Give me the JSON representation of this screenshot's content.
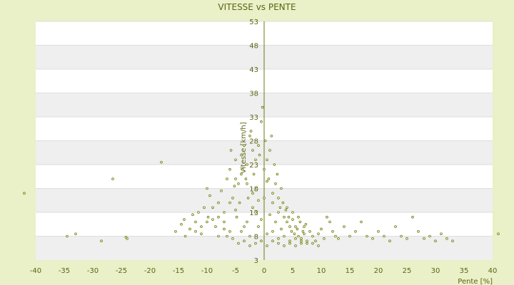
{
  "chart_data": {
    "type": "scatter",
    "title": "VITESSE vs PENTE",
    "xlabel": "Pente [%]",
    "ylabel": "Vitesse [km/h]",
    "xlim": [
      -40,
      40
    ],
    "ylim": [
      3,
      53
    ],
    "x_ticks": [
      "-40",
      "-35",
      "-30",
      "-25",
      "-20",
      "-15",
      "-10",
      "-5",
      "0",
      "5",
      "10",
      "15",
      "20",
      "25",
      "30",
      "35",
      "40"
    ],
    "y_ticks": [
      "53",
      "48",
      "43",
      "38",
      "33",
      "28",
      "23",
      "18",
      "13",
      "8",
      "3"
    ],
    "grid": "horizontal alternating bands",
    "marker_color": "#6b7a10",
    "series": [
      {
        "points": [
          [
            -42,
            17
          ],
          [
            -34.5,
            8
          ],
          [
            -33,
            8.5
          ],
          [
            -28.5,
            7
          ],
          [
            -26.5,
            20
          ],
          [
            -24,
            7.5
          ],
          [
            -24.2,
            7.8
          ],
          [
            -18,
            23.5
          ],
          [
            -15.5,
            9
          ],
          [
            -14.5,
            10.5
          ],
          [
            -14,
            11.5
          ],
          [
            -13.8,
            8
          ],
          [
            -13,
            9.5
          ],
          [
            -12.5,
            12.5
          ],
          [
            -12,
            11
          ],
          [
            -11.5,
            13
          ],
          [
            -11,
            10
          ],
          [
            -10.5,
            14
          ],
          [
            -10,
            18
          ],
          [
            -9.8,
            12
          ],
          [
            -9.5,
            16.5
          ],
          [
            -9,
            11.5
          ],
          [
            -8.5,
            10
          ],
          [
            -8,
            15
          ],
          [
            -7.5,
            17.5
          ],
          [
            -7,
            13
          ],
          [
            -6.5,
            20
          ],
          [
            -6,
            22
          ],
          [
            -5.8,
            26
          ],
          [
            -5.5,
            16
          ],
          [
            -5.2,
            18.5
          ],
          [
            -5,
            24
          ],
          [
            -4.8,
            12
          ],
          [
            -4.5,
            19
          ],
          [
            -4.3,
            15
          ],
          [
            -4,
            25
          ],
          [
            -3.8,
            22
          ],
          [
            -3.5,
            27
          ],
          [
            -3.2,
            20
          ],
          [
            -3,
            23
          ],
          [
            -2.8,
            16
          ],
          [
            -2.5,
            29
          ],
          [
            -2.3,
            30
          ],
          [
            -2,
            26
          ],
          [
            -1.8,
            21
          ],
          [
            -1.5,
            24
          ],
          [
            -1.3,
            18
          ],
          [
            -1,
            27
          ],
          [
            -0.8,
            25
          ],
          [
            -0.5,
            32
          ],
          [
            -0.3,
            35
          ],
          [
            0,
            22
          ],
          [
            0.2,
            28
          ],
          [
            0.5,
            24
          ],
          [
            0.8,
            20
          ],
          [
            1,
            26
          ],
          [
            1.3,
            29
          ],
          [
            1.5,
            17
          ],
          [
            1.8,
            23
          ],
          [
            2,
            19
          ],
          [
            2.3,
            21
          ],
          [
            2.5,
            16
          ],
          [
            2.8,
            14
          ],
          [
            3,
            18
          ],
          [
            3.3,
            15
          ],
          [
            3.5,
            12
          ],
          [
            3.8,
            13.5
          ],
          [
            4,
            11
          ],
          [
            4.3,
            12
          ],
          [
            4.5,
            10
          ],
          [
            4.8,
            9
          ],
          [
            5,
            11.5
          ],
          [
            5.3,
            8.5
          ],
          [
            5.5,
            10
          ],
          [
            5.8,
            9.5
          ],
          [
            6,
            8
          ],
          [
            6.3,
            11
          ],
          [
            6.5,
            7.5
          ],
          [
            6.8,
            9
          ],
          [
            7,
            8.5
          ],
          [
            7.3,
            10.5
          ],
          [
            7.5,
            7
          ],
          [
            8,
            9
          ],
          [
            8.5,
            8
          ],
          [
            9,
            7
          ],
          [
            9.5,
            8.5
          ],
          [
            10,
            9.5
          ],
          [
            10.5,
            7.5
          ],
          [
            11,
            12
          ],
          [
            11.5,
            11
          ],
          [
            12,
            9
          ],
          [
            12.5,
            8
          ],
          [
            13,
            7.5
          ],
          [
            14,
            10
          ],
          [
            15,
            8
          ],
          [
            16,
            9
          ],
          [
            17,
            11
          ],
          [
            18,
            8
          ],
          [
            19,
            7.5
          ],
          [
            20,
            9
          ],
          [
            21,
            8
          ],
          [
            22,
            7
          ],
          [
            23,
            10
          ],
          [
            24,
            8
          ],
          [
            25,
            7.5
          ],
          [
            26,
            12
          ],
          [
            27,
            9
          ],
          [
            28,
            7.5
          ],
          [
            29,
            8
          ],
          [
            30,
            7
          ],
          [
            31,
            8.5
          ],
          [
            32,
            7.5
          ],
          [
            33,
            7
          ],
          [
            41,
            8.5
          ],
          [
            -5,
            13.5
          ],
          [
            -4,
            9
          ],
          [
            -3,
            11
          ],
          [
            -2,
            14
          ],
          [
            -1,
            10
          ],
          [
            0,
            16
          ],
          [
            1,
            12.5
          ],
          [
            2,
            11
          ],
          [
            3,
            9.5
          ],
          [
            4,
            14
          ],
          [
            5,
            13
          ],
          [
            6,
            12
          ],
          [
            7,
            10
          ],
          [
            -6,
            9
          ],
          [
            -7,
            11
          ],
          [
            -8,
            8
          ],
          [
            -2.5,
            8
          ],
          [
            -1.5,
            13
          ],
          [
            0.5,
            8.5
          ],
          [
            1.5,
            9
          ],
          [
            2.5,
            7.5
          ],
          [
            3.5,
            8
          ],
          [
            4.5,
            7
          ],
          [
            5.5,
            7.5
          ],
          [
            6.5,
            6.5
          ],
          [
            -3.5,
            10
          ],
          [
            -0.5,
            11.5
          ],
          [
            0.5,
            19.5
          ],
          [
            1.5,
            15
          ],
          [
            2.5,
            13
          ],
          [
            -1,
            15.5
          ],
          [
            -2,
            17
          ],
          [
            -3,
            19
          ],
          [
            -4,
            21
          ],
          [
            -5,
            20
          ],
          [
            -6,
            15
          ],
          [
            -7,
            9.5
          ],
          [
            -8,
            12
          ],
          [
            -9,
            14
          ],
          [
            -10,
            11
          ],
          [
            -11,
            8.5
          ],
          [
            -12,
            9
          ],
          [
            -1.5,
            6.5
          ],
          [
            -0.5,
            7
          ],
          [
            0.5,
            6
          ],
          [
            1.5,
            7
          ],
          [
            2.5,
            6.5
          ],
          [
            3.5,
            6
          ],
          [
            4.5,
            6.5
          ],
          [
            5.5,
            6
          ],
          [
            6.5,
            7
          ],
          [
            7.5,
            6.5
          ],
          [
            8.5,
            6.5
          ],
          [
            9.5,
            6
          ],
          [
            -2.5,
            6
          ],
          [
            -3.5,
            7
          ],
          [
            -4.5,
            6.5
          ],
          [
            -5.5,
            7.5
          ],
          [
            -6.5,
            8
          ]
        ]
      }
    ]
  }
}
